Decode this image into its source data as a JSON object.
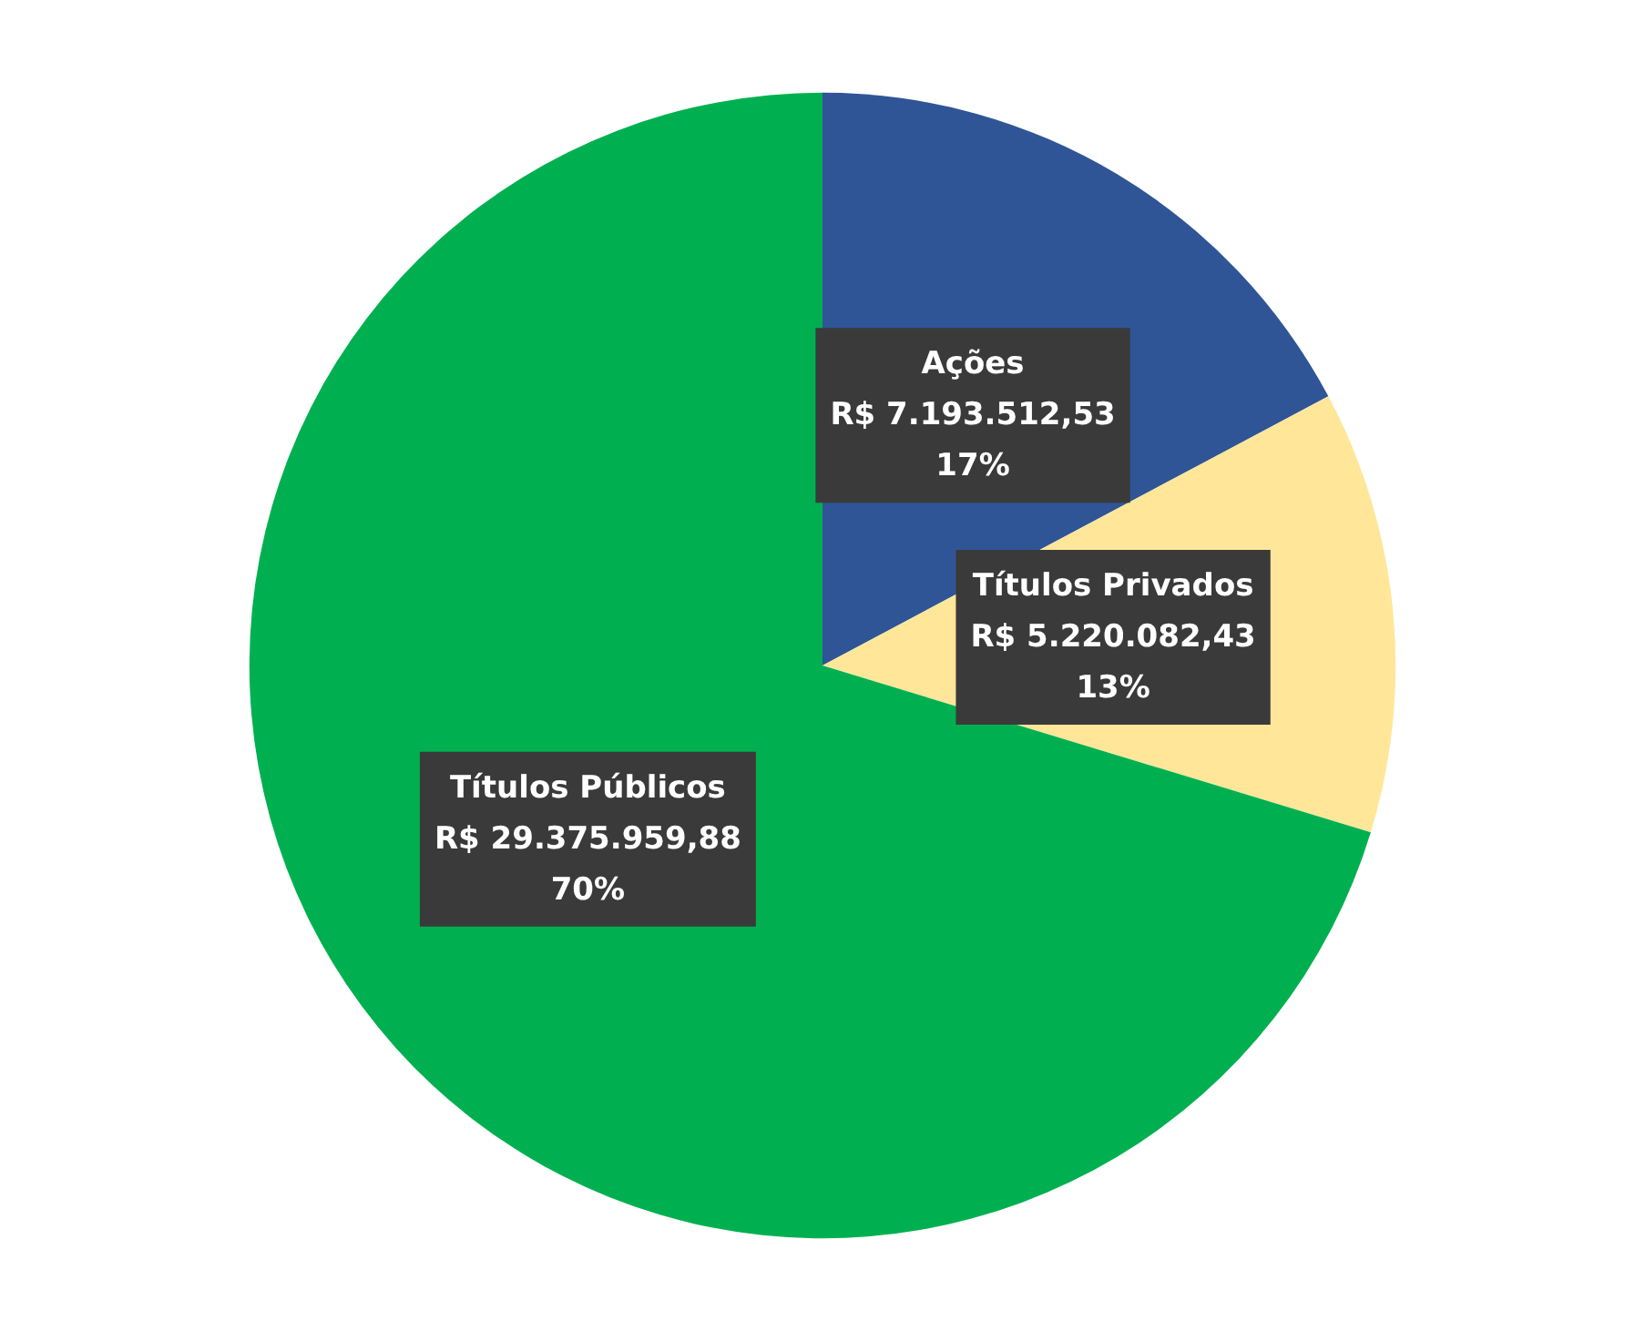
{
  "chart_data": {
    "type": "pie",
    "categories": [
      "Ações",
      "Títulos Privados",
      "Títulos Públicos"
    ],
    "values": [
      7193512.53,
      5220082.43,
      29375959.88
    ],
    "colors": [
      "#2f5597",
      "#ffe699",
      "#00b050"
    ],
    "value_labels": [
      "R$ 7.193.512,53\n17%",
      "R$ 5.220.082,43\n13%",
      "R$ 29.375.959,88\n70%"
    ],
    "legend": false
  }
}
